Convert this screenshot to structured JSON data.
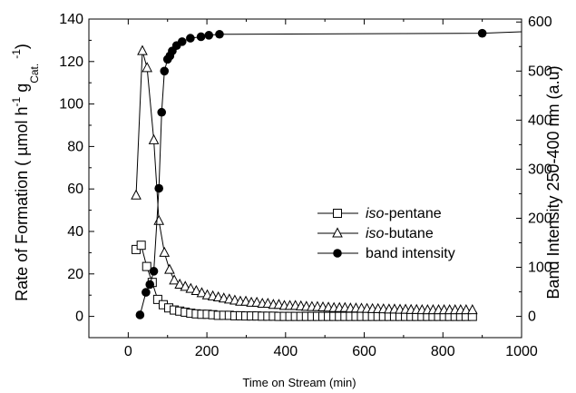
{
  "chart_data": {
    "type": "line",
    "xlabel": "Time on Stream (min)",
    "ylabel_parts": [
      "Rate of Formation ( µmol h",
      "-1",
      " g",
      "Cat.",
      " ",
      "-1",
      ")"
    ],
    "y2label": "Band Intensity 250-400 nm (a.u)",
    "xlim": [
      -100,
      1000
    ],
    "ylim": [
      -10,
      140
    ],
    "y2lim": [
      -43.3,
      606
    ],
    "xticks": [
      0,
      200,
      400,
      600,
      800,
      1000
    ],
    "yticks": [
      0,
      20,
      40,
      60,
      80,
      100,
      120,
      140
    ],
    "y2ticks": [
      0,
      100,
      200,
      300,
      400,
      500,
      600
    ],
    "colors": {
      "line": "#000000",
      "background": "#ffffff"
    },
    "series": [
      {
        "name": "iso-pentane",
        "legend_prefix": "iso",
        "legend_suffix": "-pentane",
        "marker": "open-square",
        "axis": "left",
        "x": [
          20,
          33,
          47,
          61,
          75,
          89,
          103,
          117,
          131,
          145,
          159,
          173,
          187,
          201,
          215,
          229,
          243,
          257,
          271,
          285,
          299,
          313,
          327,
          341,
          355,
          369,
          383,
          397,
          411,
          425,
          439,
          453,
          467,
          481,
          495,
          509,
          523,
          537,
          551,
          565,
          579,
          593,
          607,
          621,
          635,
          649,
          663,
          677,
          691,
          705,
          719,
          733,
          747,
          761,
          775,
          789,
          803,
          817,
          831,
          845,
          859,
          875
        ],
        "values": [
          31.5,
          33.5,
          23.5,
          16,
          8,
          5.5,
          4,
          3,
          2.5,
          2,
          1.5,
          1.2,
          1,
          1,
          0.8,
          0.5,
          0.5,
          0.5,
          0.3,
          0.3,
          0.2,
          0.2,
          0.2,
          0.1,
          0.1,
          0.1,
          0,
          0,
          0,
          0,
          0,
          0,
          0,
          0,
          0,
          0,
          0,
          0,
          0,
          0,
          0,
          0,
          0,
          0,
          0,
          0,
          0,
          0,
          0,
          0,
          0,
          0,
          0,
          0,
          0,
          0,
          0,
          0,
          0,
          0,
          0,
          0
        ]
      },
      {
        "name": "iso-butane",
        "legend_prefix": "iso",
        "legend_suffix": "-butane",
        "marker": "open-triangle",
        "axis": "left",
        "x": [
          20,
          36,
          48,
          65,
          78,
          92,
          105,
          117,
          131,
          145,
          159,
          173,
          187,
          201,
          215,
          229,
          243,
          257,
          271,
          285,
          299,
          313,
          327,
          341,
          355,
          369,
          383,
          397,
          411,
          425,
          439,
          453,
          467,
          481,
          495,
          509,
          523,
          537,
          551,
          565,
          579,
          593,
          607,
          621,
          635,
          649,
          663,
          677,
          691,
          705,
          719,
          733,
          747,
          761,
          775,
          789,
          803,
          817,
          831,
          845,
          859,
          875
        ],
        "values": [
          57,
          125,
          117,
          83,
          45,
          30,
          22,
          17,
          15,
          14,
          13,
          12,
          11,
          10,
          9.5,
          9,
          8.5,
          8,
          7.5,
          7,
          7,
          6.5,
          6.5,
          6,
          6,
          5.5,
          5.5,
          5,
          5,
          5,
          4.8,
          4.6,
          4.5,
          4.5,
          4.3,
          4.2,
          4,
          4,
          4,
          3.8,
          3.8,
          3.7,
          3.6,
          3.5,
          3.5,
          3.4,
          3.3,
          3.3,
          3.2,
          3.2,
          3.1,
          3.1,
          3,
          3,
          3,
          3,
          3,
          3,
          3,
          3,
          3,
          3
        ]
      },
      {
        "name": "band intensity",
        "marker": "filled-circle",
        "axis": "right",
        "x": [
          30,
          45,
          55,
          65,
          78,
          85,
          92,
          100,
          106,
          112,
          123,
          137,
          158,
          185,
          205,
          232,
          900,
          1000
        ],
        "values": [
          3,
          49,
          65,
          92,
          261,
          416,
          500,
          524,
          531,
          541,
          552,
          560,
          567,
          570,
          573,
          575,
          577,
          580
        ]
      }
    ],
    "legend_position": "center-right"
  }
}
